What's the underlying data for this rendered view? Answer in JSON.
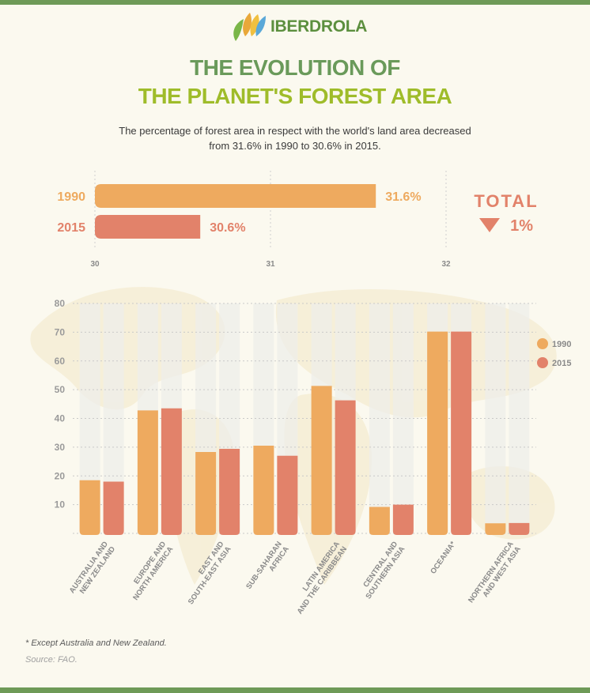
{
  "brand": {
    "name": "IBERDROLA"
  },
  "header": {
    "title_line1": "THE EVOLUTION OF",
    "title_line2": "THE PLANET'S FOREST AREA",
    "subtitle_line1": "The percentage of forest area in respect with the world's land area decreased",
    "subtitle_line2": "from 31.6% in 1990 to 30.6% in 2015."
  },
  "colors": {
    "c1990": "#eeaa5f",
    "c2015": "#e2826a",
    "title_green": "#6a9a5a",
    "title_lime": "#9fbc2a",
    "band": "#6e9a57"
  },
  "total": {
    "label": "TOTAL",
    "value": "1%",
    "icon": "down-triangle-icon"
  },
  "footnote": "* Except Australia and New Zealand.",
  "source": "Source: FAO.",
  "chart_data": [
    {
      "type": "bar",
      "orientation": "horizontal",
      "categories": [
        "1990",
        "2015"
      ],
      "values": [
        31.6,
        30.6
      ],
      "value_labels": [
        "31.6%",
        "30.6%"
      ],
      "xlim": [
        30,
        32
      ],
      "xticks": [
        "30",
        "31",
        "32"
      ],
      "grid": true
    },
    {
      "type": "bar",
      "categories": [
        [
          "AUSTRALIA AND",
          "NEW ZEALAND"
        ],
        [
          "EUROPE AND",
          "NORTH AMERICA"
        ],
        [
          "EAST AND",
          "SOUTH-EAST ASIA"
        ],
        [
          "SUB-SAHARAN",
          "AFRICA"
        ],
        [
          "LATIN AMERICA",
          "AND THE CARIBBEAN"
        ],
        [
          "CENTRAL AND",
          "SOUTHERN ASIA"
        ],
        [
          "OCEANIA*"
        ],
        [
          "NORTHERN AFRICA",
          "AND WEST ASIA"
        ]
      ],
      "series": [
        {
          "name": "1990",
          "values": [
            18.5,
            42.8,
            28.3,
            30.5,
            51.3,
            9.2,
            70.2,
            3.5
          ]
        },
        {
          "name": "2015",
          "values": [
            18.0,
            43.5,
            29.4,
            27.0,
            46.3,
            10.0,
            70.2,
            3.6
          ]
        }
      ],
      "ylim": [
        0,
        80
      ],
      "yticks": [
        10,
        20,
        30,
        40,
        50,
        60,
        70,
        80
      ],
      "grid": true,
      "legend": "right"
    }
  ]
}
